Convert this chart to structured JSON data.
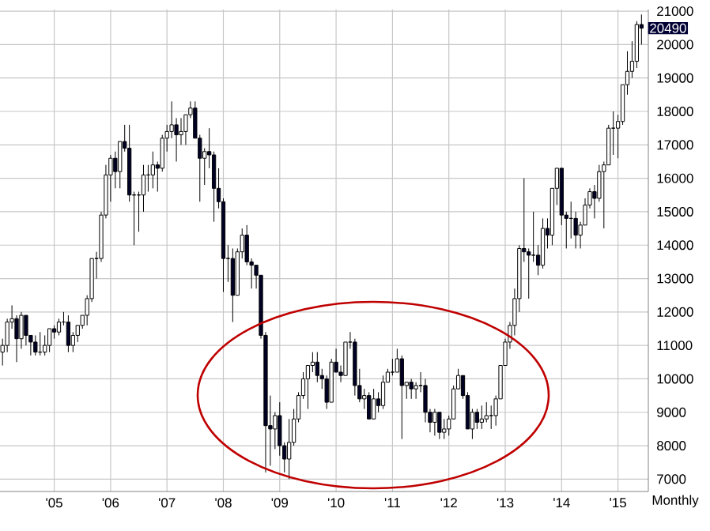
{
  "chart_data": {
    "type": "candlestick",
    "x": [
      "2004-02",
      "2004-03",
      "2004-04",
      "2004-05",
      "2004-06",
      "2004-07",
      "2004-08",
      "2004-09",
      "2004-10",
      "2004-11",
      "2004-12",
      "2005-01",
      "2005-02",
      "2005-03",
      "2005-04",
      "2005-05",
      "2005-06",
      "2005-07",
      "2005-08",
      "2005-09",
      "2005-10",
      "2005-11",
      "2005-12",
      "2006-01",
      "2006-02",
      "2006-03",
      "2006-04",
      "2006-05",
      "2006-06",
      "2006-07",
      "2006-08",
      "2006-09",
      "2006-10",
      "2006-11",
      "2006-12",
      "2007-01",
      "2007-02",
      "2007-03",
      "2007-04",
      "2007-05",
      "2007-06",
      "2007-07",
      "2007-08",
      "2007-09",
      "2007-10",
      "2007-11",
      "2007-12",
      "2008-01",
      "2008-02",
      "2008-03",
      "2008-04",
      "2008-05",
      "2008-06",
      "2008-07",
      "2008-08",
      "2008-09",
      "2008-10",
      "2008-11",
      "2008-12",
      "2009-01",
      "2009-02",
      "2009-03",
      "2009-04",
      "2009-05",
      "2009-06",
      "2009-07",
      "2009-08",
      "2009-09",
      "2009-10",
      "2009-11",
      "2009-12",
      "2010-01",
      "2010-02",
      "2010-03",
      "2010-04",
      "2010-05",
      "2010-06",
      "2010-07",
      "2010-08",
      "2010-09",
      "2010-10",
      "2010-11",
      "2010-12",
      "2011-01",
      "2011-02",
      "2011-03",
      "2011-04",
      "2011-05",
      "2011-06",
      "2011-07",
      "2011-08",
      "2011-09",
      "2011-10",
      "2011-11",
      "2011-12",
      "2012-01",
      "2012-02",
      "2012-03",
      "2012-04",
      "2012-05",
      "2012-06",
      "2012-07",
      "2012-08",
      "2012-09",
      "2012-10",
      "2012-11",
      "2012-12",
      "2013-01",
      "2013-02",
      "2013-03",
      "2013-04",
      "2013-05",
      "2013-06",
      "2013-07",
      "2013-08",
      "2013-09",
      "2013-10",
      "2013-11",
      "2013-12",
      "2014-01",
      "2014-02",
      "2014-03",
      "2014-04",
      "2014-05",
      "2014-06",
      "2014-07",
      "2014-08",
      "2014-09",
      "2014-10",
      "2014-11",
      "2014-12",
      "2015-01",
      "2015-02",
      "2015-03",
      "2015-04",
      "2015-05",
      "2015-06"
    ],
    "ohlc": [
      [
        10800,
        11200,
        10400,
        11000
      ],
      [
        11000,
        11800,
        10800,
        11700
      ],
      [
        11700,
        12200,
        11500,
        11800
      ],
      [
        11800,
        11900,
        10500,
        11200
      ],
      [
        11200,
        12000,
        10900,
        11900
      ],
      [
        11900,
        11900,
        11000,
        11300
      ],
      [
        11300,
        11300,
        10700,
        11100
      ],
      [
        11100,
        11300,
        10700,
        10800
      ],
      [
        10800,
        11400,
        10700,
        10800
      ],
      [
        10800,
        11300,
        10700,
        11000
      ],
      [
        11000,
        11500,
        10800,
        11500
      ],
      [
        11500,
        11600,
        11200,
        11400
      ],
      [
        11400,
        11800,
        11300,
        11700
      ],
      [
        11700,
        12000,
        11600,
        11700
      ],
      [
        11700,
        11900,
        10800,
        11000
      ],
      [
        11000,
        11400,
        10800,
        11300
      ],
      [
        11300,
        11600,
        11100,
        11600
      ],
      [
        11600,
        11900,
        11500,
        11900
      ],
      [
        11900,
        12500,
        11600,
        12400
      ],
      [
        12400,
        13600,
        12300,
        13600
      ],
      [
        13600,
        13800,
        13000,
        13600
      ],
      [
        13600,
        15000,
        13500,
        14900
      ],
      [
        14900,
        16400,
        14800,
        16100
      ],
      [
        16100,
        16700,
        15300,
        16600
      ],
      [
        16600,
        16800,
        15700,
        16200
      ],
      [
        16200,
        17100,
        15700,
        17100
      ],
      [
        17100,
        17600,
        16800,
        16900
      ],
      [
        16900,
        17600,
        15300,
        15500
      ],
      [
        15500,
        15600,
        14000,
        15500
      ],
      [
        15500,
        15600,
        14400,
        15500
      ],
      [
        15500,
        16400,
        15000,
        16100
      ],
      [
        16100,
        16400,
        15600,
        16100
      ],
      [
        16100,
        16800,
        15700,
        16400
      ],
      [
        16400,
        16500,
        15600,
        16300
      ],
      [
        16300,
        17300,
        16200,
        17200
      ],
      [
        17200,
        17600,
        16800,
        17400
      ],
      [
        17400,
        18300,
        17200,
        17600
      ],
      [
        17600,
        17800,
        16500,
        17300
      ],
      [
        17300,
        17800,
        17000,
        17400
      ],
      [
        17400,
        17900,
        17000,
        17900
      ],
      [
        17900,
        18300,
        17800,
        18100
      ],
      [
        18100,
        18300,
        17200,
        17200
      ],
      [
        17200,
        17300,
        15300,
        16600
      ],
      [
        16600,
        16900,
        15800,
        16800
      ],
      [
        16800,
        17500,
        16300,
        16700
      ],
      [
        16700,
        16800,
        14700,
        15700
      ],
      [
        15700,
        16300,
        15100,
        15300
      ],
      [
        15300,
        15400,
        12600,
        13600
      ],
      [
        13600,
        14000,
        12900,
        13600
      ],
      [
        13600,
        13900,
        11700,
        12500
      ],
      [
        12500,
        13900,
        12500,
        13800
      ],
      [
        13800,
        14500,
        13600,
        14300
      ],
      [
        14300,
        14600,
        13400,
        13500
      ],
      [
        13500,
        13600,
        12700,
        13400
      ],
      [
        13400,
        13400,
        12700,
        13100
      ],
      [
        13100,
        13100,
        11200,
        11300
      ],
      [
        11300,
        11400,
        7200,
        8600
      ],
      [
        8600,
        9500,
        7400,
        8500
      ],
      [
        8500,
        9000,
        7900,
        8900
      ],
      [
        8900,
        9300,
        7700,
        8000
      ],
      [
        8000,
        8100,
        7200,
        7600
      ],
      [
        7600,
        8800,
        7000,
        8100
      ],
      [
        8100,
        9100,
        8000,
        8800
      ],
      [
        8800,
        9600,
        8700,
        9500
      ],
      [
        9500,
        10200,
        9400,
        10000
      ],
      [
        10000,
        10400,
        9100,
        10400
      ],
      [
        10400,
        10800,
        10200,
        10500
      ],
      [
        10500,
        10800,
        9900,
        10100
      ],
      [
        10100,
        10300,
        9700,
        10000
      ],
      [
        10000,
        10100,
        9100,
        9300
      ],
      [
        9300,
        10600,
        9300,
        10500
      ],
      [
        10500,
        10900,
        10200,
        10200
      ],
      [
        10200,
        10400,
        9900,
        10100
      ],
      [
        10100,
        11100,
        10100,
        11100
      ],
      [
        11100,
        11400,
        10900,
        11100
      ],
      [
        11100,
        11200,
        9500,
        9800
      ],
      [
        9800,
        10300,
        9300,
        9400
      ],
      [
        9400,
        9700,
        9100,
        9500
      ],
      [
        9500,
        9600,
        8800,
        8800
      ],
      [
        8800,
        9700,
        8800,
        9400
      ],
      [
        9400,
        9600,
        9000,
        9200
      ],
      [
        9200,
        10100,
        9100,
        9900
      ],
      [
        9900,
        10300,
        9900,
        10200
      ],
      [
        10200,
        10600,
        10100,
        10200
      ],
      [
        10200,
        10900,
        10200,
        10600
      ],
      [
        10600,
        10700,
        8200,
        9800
      ],
      [
        9800,
        9900,
        9400,
        9900
      ],
      [
        9900,
        10000,
        9400,
        9700
      ],
      [
        9700,
        9900,
        9400,
        9800
      ],
      [
        9800,
        10200,
        9600,
        9800
      ],
      [
        9800,
        10000,
        8700,
        9000
      ],
      [
        9000,
        9100,
        8400,
        8700
      ],
      [
        8700,
        9100,
        8300,
        9000
      ],
      [
        9000,
        9000,
        8200,
        8400
      ],
      [
        8400,
        8800,
        8200,
        8500
      ],
      [
        8500,
        8900,
        8300,
        8800
      ],
      [
        8800,
        9800,
        8800,
        9700
      ],
      [
        9700,
        10300,
        9700,
        10100
      ],
      [
        10100,
        10100,
        9400,
        9500
      ],
      [
        9500,
        9600,
        8500,
        8500
      ],
      [
        8500,
        9100,
        8200,
        9000
      ],
      [
        9000,
        9100,
        8500,
        8700
      ],
      [
        8700,
        9200,
        8500,
        8800
      ],
      [
        8800,
        9300,
        8700,
        8900
      ],
      [
        8900,
        9200,
        8500,
        8900
      ],
      [
        8900,
        9500,
        8600,
        9400
      ],
      [
        9400,
        10400,
        9400,
        10400
      ],
      [
        10400,
        11200,
        10400,
        11100
      ],
      [
        11100,
        11700,
        10900,
        11600
      ],
      [
        11600,
        12700,
        11300,
        12400
      ],
      [
        12400,
        14000,
        12000,
        13900
      ],
      [
        13900,
        16000,
        13500,
        13800
      ],
      [
        13800,
        13900,
        12400,
        13700
      ],
      [
        13700,
        15000,
        13500,
        13700
      ],
      [
        13700,
        14000,
        13100,
        13400
      ],
      [
        13400,
        14800,
        13300,
        14500
      ],
      [
        14500,
        14800,
        13900,
        14300
      ],
      [
        14300,
        15700,
        14000,
        15700
      ],
      [
        15700,
        16300,
        15200,
        16300
      ],
      [
        16300,
        16300,
        14600,
        14900
      ],
      [
        14900,
        15000,
        13900,
        14800
      ],
      [
        14800,
        15300,
        14200,
        14800
      ],
      [
        14800,
        15000,
        13900,
        14300
      ],
      [
        14300,
        14700,
        13900,
        14600
      ],
      [
        14600,
        15400,
        14600,
        15200
      ],
      [
        15200,
        15700,
        15100,
        15600
      ],
      [
        15600,
        15800,
        14800,
        15400
      ],
      [
        15400,
        16400,
        15300,
        16200
      ],
      [
        16200,
        16500,
        14500,
        16400
      ],
      [
        16400,
        17600,
        16400,
        17500
      ],
      [
        17500,
        18000,
        16700,
        17500
      ],
      [
        17500,
        17900,
        16600,
        17700
      ],
      [
        17700,
        18800,
        17600,
        18800
      ],
      [
        18800,
        19800,
        18500,
        19200
      ],
      [
        19200,
        20100,
        19000,
        19500
      ],
      [
        19500,
        20700,
        19300,
        20600
      ],
      [
        20600,
        20900,
        20000,
        20490
      ]
    ],
    "xlim": [
      "2004-01-15",
      "2015-07-15"
    ],
    "xticks": [
      {
        "value": "2005",
        "label": "'05"
      },
      {
        "value": "2006",
        "label": "'06"
      },
      {
        "value": "2007",
        "label": "'07"
      },
      {
        "value": "2008",
        "label": "'08"
      },
      {
        "value": "2009",
        "label": "'09"
      },
      {
        "value": "2010",
        "label": "'10"
      },
      {
        "value": "2011",
        "label": "'11"
      },
      {
        "value": "2012",
        "label": "'12"
      },
      {
        "value": "2013",
        "label": "'13"
      },
      {
        "value": "2014",
        "label": "'14"
      },
      {
        "value": "2015",
        "label": "'15"
      }
    ],
    "ylim": [
      6630,
      21050
    ],
    "yticks": [
      7000,
      8000,
      9000,
      10000,
      11000,
      12000,
      13000,
      14000,
      15000,
      16000,
      17000,
      18000,
      19000,
      20000,
      21000
    ],
    "grid": true,
    "annotations": [
      {
        "text": "20490",
        "x": "2015-06",
        "y": 20490
      },
      "Monthly"
    ]
  }
}
